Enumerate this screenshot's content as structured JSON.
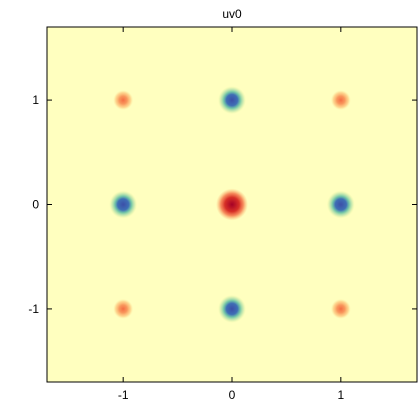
{
  "chart_data": {
    "type": "heatmap",
    "title": "uv0",
    "xlabel": "",
    "ylabel": "",
    "xlim": [
      -1.7,
      1.7
    ],
    "ylim": [
      -1.7,
      1.7
    ],
    "x_ticks": [
      -1,
      0,
      1
    ],
    "y_ticks": [
      -1,
      0,
      1
    ],
    "x_tick_labels": [
      "-1",
      "0",
      "1"
    ],
    "y_tick_labels": [
      "-1",
      "0",
      "1"
    ],
    "grid": false,
    "background_color": "#ffffbf",
    "colormap": "spectral",
    "peaks": [
      {
        "x": -1,
        "y": 1,
        "color": "#f88c52",
        "kind": "orange-spot"
      },
      {
        "x": 0,
        "y": 1,
        "color": "#3f5fb5",
        "kind": "blue-spot"
      },
      {
        "x": 1,
        "y": 1,
        "color": "#f88c52",
        "kind": "orange-spot"
      },
      {
        "x": -1,
        "y": 0,
        "color": "#3f5fb5",
        "kind": "blue-spot"
      },
      {
        "x": 0,
        "y": 0,
        "color": "#a50026",
        "kind": "red-spot"
      },
      {
        "x": 1,
        "y": 0,
        "color": "#3f5fb5",
        "kind": "blue-spot"
      },
      {
        "x": -1,
        "y": -1,
        "color": "#f88c52",
        "kind": "orange-spot"
      },
      {
        "x": 0,
        "y": -1,
        "color": "#3f5fb5",
        "kind": "blue-spot"
      },
      {
        "x": 1,
        "y": -1,
        "color": "#f88c52",
        "kind": "orange-spot"
      }
    ]
  }
}
